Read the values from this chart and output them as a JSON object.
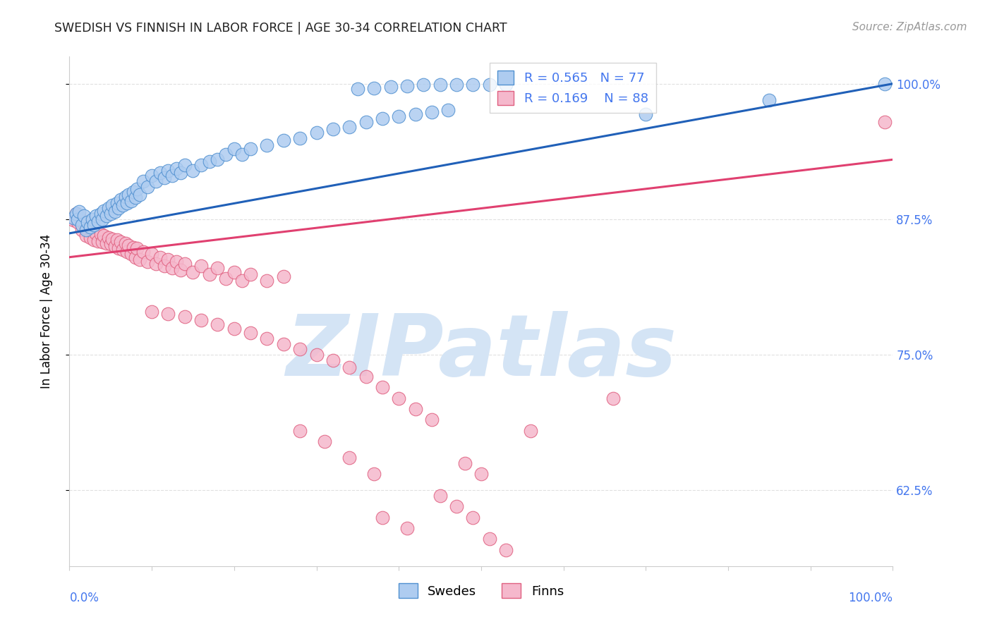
{
  "title": "SWEDISH VS FINNISH IN LABOR FORCE | AGE 30-34 CORRELATION CHART",
  "source": "Source: ZipAtlas.com",
  "ylabel": "In Labor Force | Age 30-34",
  "ytick_labels": [
    "100.0%",
    "87.5%",
    "75.0%",
    "62.5%"
  ],
  "ytick_values": [
    1.0,
    0.875,
    0.75,
    0.625
  ],
  "xlim": [
    0.0,
    1.0
  ],
  "ylim": [
    0.555,
    1.025
  ],
  "legend_swedes": "Swedes",
  "legend_finns": "Finns",
  "r_swedes": 0.565,
  "n_swedes": 77,
  "r_finns": 0.169,
  "n_finns": 88,
  "color_swedes_face": "#AECCF0",
  "color_finns_face": "#F5B8CC",
  "color_swedes_edge": "#5090D0",
  "color_finns_edge": "#E06080",
  "color_swedes_line": "#2060B8",
  "color_finns_line": "#E04070",
  "watermark_color": "#D4E4F5",
  "grid_color": "#E0E0E0",
  "tick_label_color": "#4477EE",
  "source_color": "#999999",
  "title_color": "#222222",
  "swedes_x": [
    0.005,
    0.008,
    0.01,
    0.012,
    0.015,
    0.018,
    0.02,
    0.022,
    0.025,
    0.028,
    0.03,
    0.032,
    0.035,
    0.038,
    0.04,
    0.042,
    0.045,
    0.048,
    0.05,
    0.052,
    0.055,
    0.058,
    0.06,
    0.062,
    0.065,
    0.068,
    0.07,
    0.072,
    0.075,
    0.078,
    0.08,
    0.082,
    0.085,
    0.09,
    0.095,
    0.1,
    0.105,
    0.11,
    0.115,
    0.12,
    0.125,
    0.13,
    0.135,
    0.14,
    0.15,
    0.16,
    0.17,
    0.18,
    0.19,
    0.2,
    0.21,
    0.22,
    0.24,
    0.26,
    0.28,
    0.3,
    0.32,
    0.34,
    0.36,
    0.38,
    0.4,
    0.42,
    0.44,
    0.46,
    0.35,
    0.37,
    0.39,
    0.41,
    0.43,
    0.45,
    0.47,
    0.49,
    0.51,
    0.53,
    0.7,
    0.85,
    0.99
  ],
  "swedes_y": [
    0.876,
    0.88,
    0.875,
    0.882,
    0.87,
    0.878,
    0.865,
    0.872,
    0.868,
    0.875,
    0.87,
    0.878,
    0.873,
    0.88,
    0.875,
    0.883,
    0.878,
    0.885,
    0.88,
    0.888,
    0.882,
    0.89,
    0.885,
    0.893,
    0.888,
    0.896,
    0.89,
    0.898,
    0.892,
    0.9,
    0.895,
    0.903,
    0.898,
    0.91,
    0.905,
    0.915,
    0.91,
    0.918,
    0.913,
    0.92,
    0.915,
    0.922,
    0.918,
    0.925,
    0.92,
    0.925,
    0.928,
    0.93,
    0.935,
    0.94,
    0.935,
    0.94,
    0.943,
    0.948,
    0.95,
    0.955,
    0.958,
    0.96,
    0.965,
    0.968,
    0.97,
    0.972,
    0.974,
    0.976,
    0.995,
    0.996,
    0.997,
    0.998,
    0.999,
    0.999,
    0.999,
    0.999,
    0.999,
    0.999,
    0.972,
    0.985,
    1.0
  ],
  "finns_x": [
    0.005,
    0.008,
    0.01,
    0.012,
    0.015,
    0.018,
    0.02,
    0.022,
    0.025,
    0.028,
    0.03,
    0.032,
    0.035,
    0.038,
    0.04,
    0.042,
    0.045,
    0.048,
    0.05,
    0.052,
    0.055,
    0.058,
    0.06,
    0.062,
    0.065,
    0.068,
    0.07,
    0.072,
    0.075,
    0.078,
    0.08,
    0.082,
    0.085,
    0.09,
    0.095,
    0.1,
    0.105,
    0.11,
    0.115,
    0.12,
    0.125,
    0.13,
    0.135,
    0.14,
    0.15,
    0.16,
    0.17,
    0.18,
    0.19,
    0.2,
    0.21,
    0.22,
    0.24,
    0.26,
    0.1,
    0.12,
    0.14,
    0.16,
    0.18,
    0.2,
    0.22,
    0.24,
    0.26,
    0.28,
    0.3,
    0.32,
    0.34,
    0.36,
    0.38,
    0.4,
    0.42,
    0.44,
    0.28,
    0.31,
    0.34,
    0.37,
    0.48,
    0.5,
    0.56,
    0.66,
    0.45,
    0.47,
    0.49,
    0.51,
    0.53,
    0.38,
    0.41,
    0.99
  ],
  "finns_y": [
    0.874,
    0.88,
    0.872,
    0.878,
    0.865,
    0.871,
    0.86,
    0.866,
    0.858,
    0.864,
    0.856,
    0.862,
    0.855,
    0.861,
    0.854,
    0.86,
    0.853,
    0.858,
    0.852,
    0.857,
    0.85,
    0.856,
    0.848,
    0.854,
    0.847,
    0.853,
    0.845,
    0.851,
    0.843,
    0.849,
    0.84,
    0.848,
    0.838,
    0.845,
    0.836,
    0.843,
    0.834,
    0.84,
    0.832,
    0.838,
    0.83,
    0.836,
    0.828,
    0.834,
    0.826,
    0.832,
    0.824,
    0.83,
    0.82,
    0.826,
    0.818,
    0.824,
    0.818,
    0.822,
    0.79,
    0.788,
    0.785,
    0.782,
    0.778,
    0.774,
    0.77,
    0.765,
    0.76,
    0.755,
    0.75,
    0.745,
    0.738,
    0.73,
    0.72,
    0.71,
    0.7,
    0.69,
    0.68,
    0.67,
    0.655,
    0.64,
    0.65,
    0.64,
    0.68,
    0.71,
    0.62,
    0.61,
    0.6,
    0.58,
    0.57,
    0.6,
    0.59,
    0.965
  ]
}
